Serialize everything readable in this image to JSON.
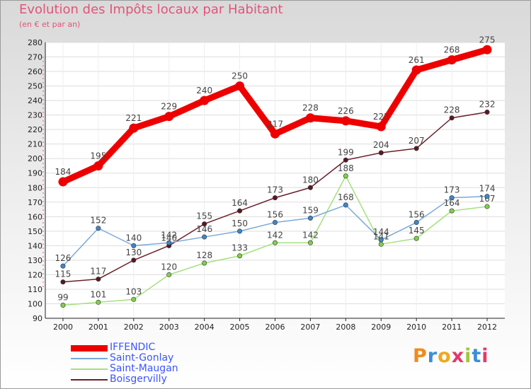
{
  "chart_data": {
    "type": "line",
    "title": "Evolution des Impôts locaux par Habitant",
    "subtitle": "(en € et par an)",
    "xlabel": "",
    "ylabel": "",
    "categories": [
      "2000",
      "2001",
      "2002",
      "2003",
      "2004",
      "2005",
      "2006",
      "2007",
      "2008",
      "2009",
      "2010",
      "2011",
      "2012"
    ],
    "ylim": [
      90,
      280
    ],
    "ytick_step": 10,
    "grid": "horizontal",
    "legend_position": "bottom-left",
    "series": [
      {
        "name": "Boisgervilly",
        "color": "#6b1f2a",
        "point_color": "#5a1822",
        "emphasis": false,
        "values": [
          115,
          117,
          130,
          140,
          155,
          164,
          173,
          180,
          199,
          204,
          207,
          228,
          232
        ]
      },
      {
        "name": "Saint-Maugan",
        "color": "#a6e07e",
        "point_color": "#7fd04a",
        "emphasis": false,
        "values": [
          99,
          101,
          103,
          120,
          128,
          133,
          142,
          142,
          188,
          141,
          145,
          164,
          167
        ]
      },
      {
        "name": "Saint-Gonlay",
        "color": "#7aaad8",
        "point_color": "#3f86c8",
        "emphasis": false,
        "values": [
          126,
          152,
          140,
          142,
          146,
          150,
          156,
          159,
          168,
          144,
          156,
          173,
          174
        ]
      },
      {
        "name": "IFFENDIC",
        "color": "#ee0000",
        "point_color": "#ee0000",
        "emphasis": true,
        "values": [
          184,
          195,
          221,
          229,
          240,
          250,
          217,
          228,
          226,
          222,
          261,
          268,
          275
        ]
      }
    ]
  },
  "legend": [
    {
      "label": "IFFENDIC",
      "color": "#ee0000",
      "emphasis": true
    },
    {
      "label": "Saint-Gonlay",
      "color": "#7aaad8",
      "emphasis": false
    },
    {
      "label": "Saint-Maugan",
      "color": "#a6e07e",
      "emphasis": false
    },
    {
      "label": "Boisgervilly",
      "color": "#6b1f2a",
      "emphasis": false
    }
  ],
  "logo": {
    "text": "Proxiti",
    "letter_colors": [
      "#f08a1c",
      "#3a8fd8",
      "#f0a91c",
      "#e23a6a",
      "#a2c63a",
      "#3a8fd8",
      "#e23a6a"
    ]
  }
}
